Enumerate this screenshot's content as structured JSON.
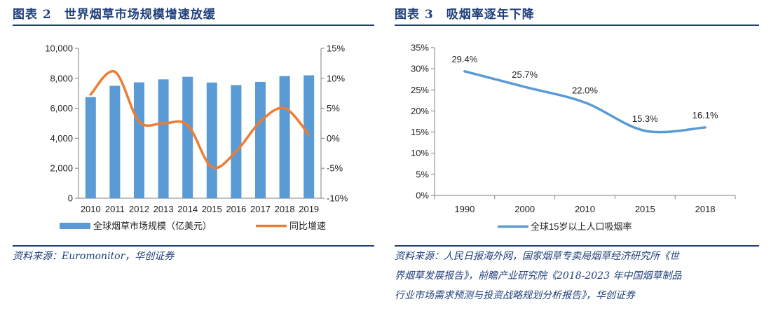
{
  "figures": [
    {
      "title": "图表 2　世界烟草市场规模增速放缓",
      "source": "资料来源：Euromonitor，华创证券"
    },
    {
      "title": "图表 3　吸烟率逐年下降",
      "source_lines": [
        "资料来源：人民日报海外网，国家烟草专卖局烟草经济研究所《世",
        "界烟草发展报告》，前瞻产业研究院《2018-2023 年中国烟草制品",
        "行业市场需求预测与投资战略规划分析报告》，华创证券"
      ]
    }
  ],
  "chart_data": [
    {
      "type": "bar",
      "categories": [
        "2010",
        "2011",
        "2012",
        "2013",
        "2014",
        "2015",
        "2016",
        "2017",
        "2018",
        "2019"
      ],
      "series": [
        {
          "name": "全球烟草市场规模（亿美元）",
          "type": "bar",
          "axis": "left",
          "values": [
            6750,
            7500,
            7730,
            7930,
            8100,
            7720,
            7550,
            7760,
            8150,
            8200
          ],
          "color": "#5b9bd5"
        },
        {
          "name": "同比增速",
          "type": "line",
          "axis": "right",
          "values": [
            7.3,
            11.1,
            2.8,
            2.5,
            2.2,
            -4.8,
            -2.2,
            2.8,
            5.0,
            0.6
          ],
          "color": "#ed7d31"
        }
      ],
      "ylim": [
        0,
        10000
      ],
      "yticks": [
        "0",
        "2,000",
        "4,000",
        "6,000",
        "8,000",
        "10,000"
      ],
      "y2lim": [
        -10,
        15
      ],
      "y2ticks": [
        "-10%",
        "-5%",
        "0%",
        "5%",
        "10%",
        "15%"
      ],
      "legend_position": "bottom"
    },
    {
      "type": "line",
      "categories": [
        "1990",
        "2000",
        "2010",
        "2015",
        "2018"
      ],
      "series": [
        {
          "name": "全球15岁以上人口吸烟率",
          "values": [
            29.4,
            25.7,
            22.0,
            15.3,
            16.1
          ],
          "color": "#5b9bd5"
        }
      ],
      "point_labels": [
        "29.4%",
        "25.7%",
        "22.0%",
        "15.3%",
        "16.1%"
      ],
      "ylim": [
        0,
        35
      ],
      "yticks": [
        "0%",
        "5%",
        "10%",
        "15%",
        "20%",
        "25%",
        "30%",
        "35%"
      ],
      "legend_position": "bottom"
    }
  ]
}
